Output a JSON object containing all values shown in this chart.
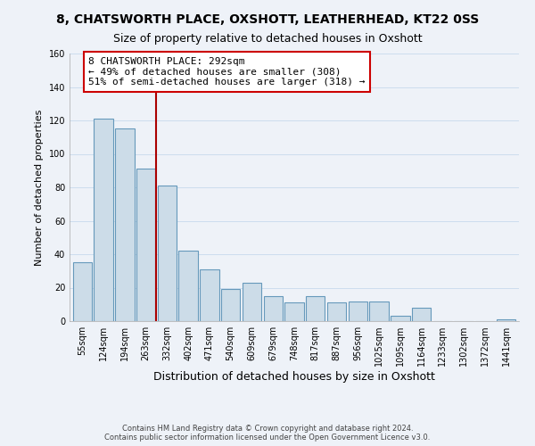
{
  "title": "8, CHATSWORTH PLACE, OXSHOTT, LEATHERHEAD, KT22 0SS",
  "subtitle": "Size of property relative to detached houses in Oxshott",
  "xlabel": "Distribution of detached houses by size in Oxshott",
  "ylabel": "Number of detached properties",
  "bar_labels": [
    "55sqm",
    "124sqm",
    "194sqm",
    "263sqm",
    "332sqm",
    "402sqm",
    "471sqm",
    "540sqm",
    "609sqm",
    "679sqm",
    "748sqm",
    "817sqm",
    "887sqm",
    "956sqm",
    "1025sqm",
    "1095sqm",
    "1164sqm",
    "1233sqm",
    "1302sqm",
    "1372sqm",
    "1441sqm"
  ],
  "bar_values": [
    35,
    121,
    115,
    91,
    81,
    42,
    31,
    19,
    23,
    15,
    11,
    15,
    11,
    12,
    12,
    3,
    8,
    0,
    0,
    0,
    1
  ],
  "bar_color": "#ccdce8",
  "bar_edge_color": "#6699bb",
  "vline_x": 3.5,
  "vline_color": "#aa0000",
  "annotation_line1": "8 CHATSWORTH PLACE: 292sqm",
  "annotation_line2": "← 49% of detached houses are smaller (308)",
  "annotation_line3": "51% of semi-detached houses are larger (318) →",
  "annotation_box_color": "#ffffff",
  "annotation_box_edge": "#cc0000",
  "ylim": [
    0,
    160
  ],
  "yticks": [
    0,
    20,
    40,
    60,
    80,
    100,
    120,
    140,
    160
  ],
  "grid_color": "#ccddee",
  "background_color": "#eef2f8",
  "footer_line1": "Contains HM Land Registry data © Crown copyright and database right 2024.",
  "footer_line2": "Contains public sector information licensed under the Open Government Licence v3.0.",
  "title_fontsize": 10,
  "subtitle_fontsize": 9,
  "annot_fontsize": 8
}
